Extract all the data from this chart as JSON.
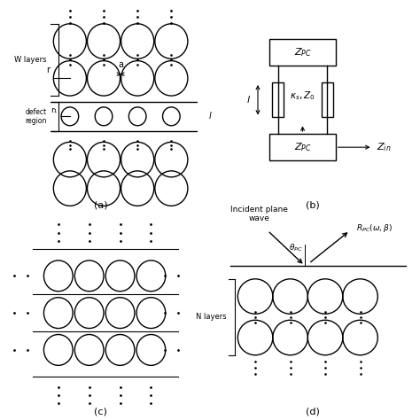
{
  "bg_color": "#ffffff",
  "panel_a_label": "(a)",
  "panel_b_label": "(b)",
  "panel_c_label": "(c)",
  "panel_d_label": "(d)"
}
